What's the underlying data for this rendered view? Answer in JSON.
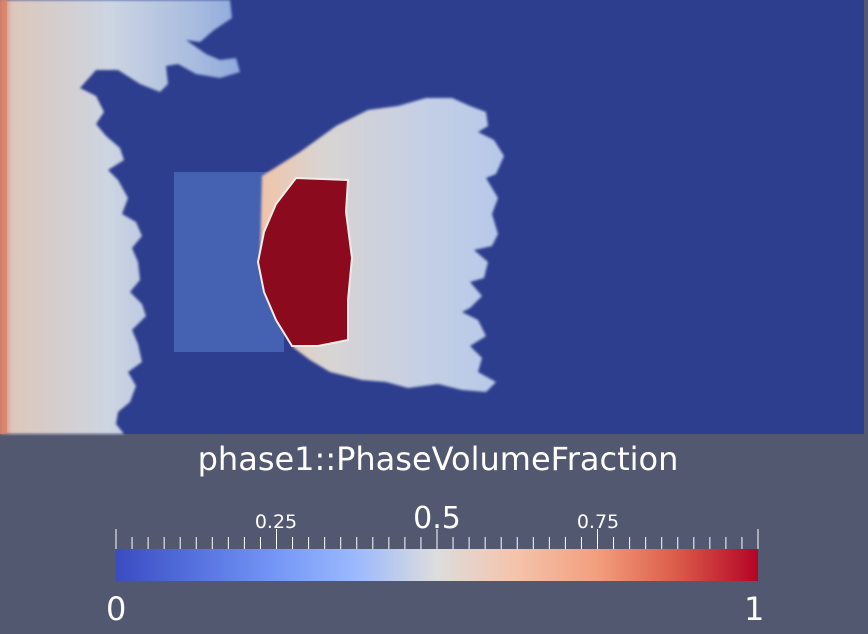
{
  "colorbar": {
    "title": "phase1::PhaseVolumeFraction",
    "min_label": "0",
    "max_label": "1",
    "tick_labels": [
      {
        "value": 0.25,
        "text": "0.25"
      },
      {
        "value": 0.5,
        "text": "0.5"
      },
      {
        "value": 0.75,
        "text": "0.75"
      }
    ],
    "range": [
      0,
      1
    ],
    "colormap": "cool-to-warm",
    "colors": {
      "low": "#3b4cc0",
      "mid": "#dddddd",
      "high": "#b40426"
    }
  },
  "render": {
    "background_color": "#525870",
    "domain_color": "#2e3e8e",
    "droplet_color": "#8b0a1e"
  }
}
